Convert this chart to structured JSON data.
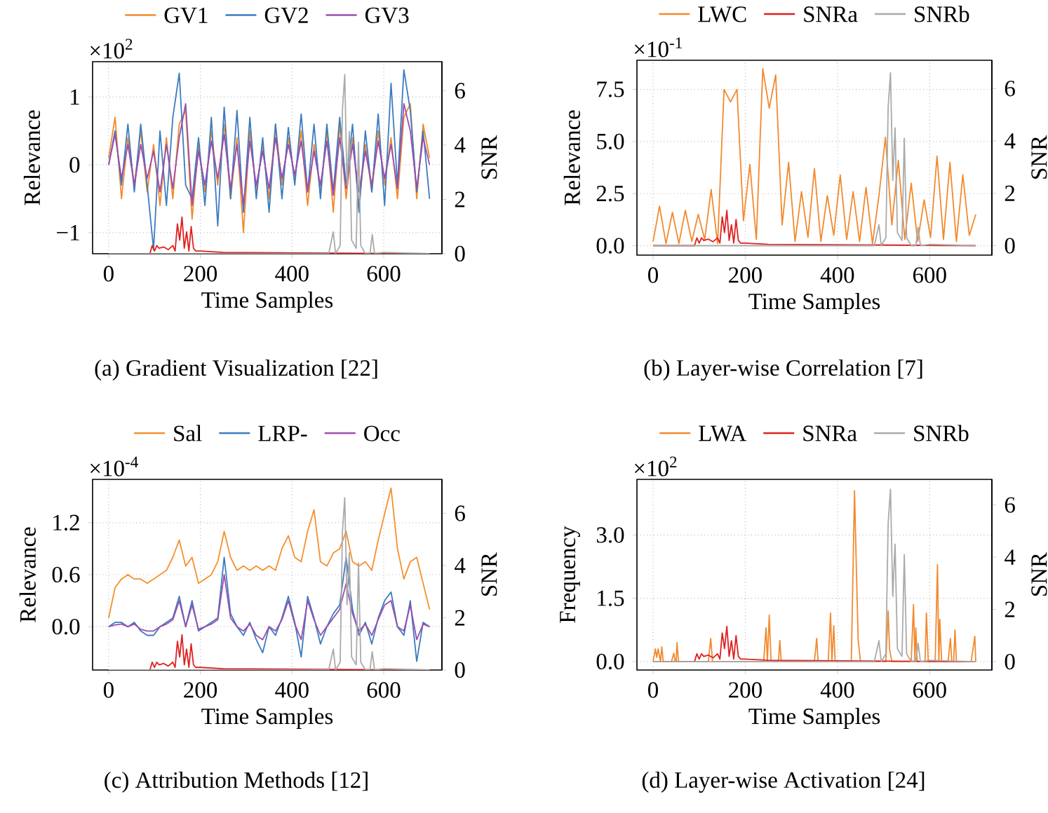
{
  "chart_data": [
    {
      "type": "line",
      "xlabel": "Time Samples",
      "ylabel": "Relevance",
      "y2label": "SNR",
      "annotations": [
        "×10$^{2}$",
        "(a) Gradient Visualization [22]"
      ],
      "x": [
        0,
        14,
        28,
        42,
        56,
        70,
        84,
        98,
        112,
        126,
        140,
        154,
        168,
        182,
        196,
        210,
        224,
        238,
        252,
        266,
        280,
        294,
        308,
        322,
        336,
        350,
        364,
        378,
        392,
        406,
        420,
        434,
        448,
        462,
        476,
        490,
        504,
        518,
        532,
        546,
        560,
        574,
        588,
        602,
        616,
        630,
        644,
        658,
        672,
        686,
        700
      ],
      "xlim": [
        -35,
        727
      ],
      "ylim": [
        -1.31,
        1.52
      ],
      "y2lim": [
        0,
        7.07
      ],
      "xticks": [
        0,
        200,
        400,
        600
      ],
      "yticks": [
        {
          "value": -1,
          "label": "−1"
        },
        0,
        1
      ],
      "y2ticks": [
        0,
        2,
        4,
        6
      ],
      "grid": true,
      "legend": "top",
      "series": [
        {
          "name": "GV1",
          "color": "#f28a2e",
          "values": [
            0.1,
            0.7,
            -0.5,
            0.4,
            -0.3,
            0.5,
            -0.4,
            0.3,
            -0.6,
            0.4,
            -0.5,
            0.6,
            0.8,
            -0.8,
            0.3,
            -0.4,
            0.5,
            -0.3,
            0.6,
            -0.5,
            0.4,
            -1.0,
            0.5,
            -0.4,
            0.3,
            -0.5,
            0.6,
            -0.3,
            0.4,
            -0.2,
            0.5,
            -0.6,
            0.3,
            -0.4,
            0.5,
            -0.7,
            0.6,
            -0.5,
            0.4,
            -0.6,
            0.3,
            -0.4,
            0.5,
            -0.3,
            0.4,
            -0.5,
            0.7,
            0.9,
            -0.5,
            0.6,
            0.1
          ]
        },
        {
          "name": "GV2",
          "color": "#3b7cc0",
          "values": [
            0.0,
            0.5,
            -0.3,
            0.6,
            -0.4,
            0.6,
            -0.3,
            -1.25,
            0.5,
            -0.6,
            0.7,
            1.35,
            -0.3,
            -0.5,
            0.4,
            -0.6,
            0.7,
            -0.9,
            0.85,
            -0.5,
            0.8,
            -0.7,
            0.7,
            -0.5,
            0.4,
            -0.7,
            0.6,
            -0.5,
            0.55,
            -0.3,
            0.75,
            -0.4,
            0.6,
            -0.5,
            0.6,
            -0.4,
            0.7,
            -0.3,
            0.6,
            -0.7,
            0.5,
            -0.4,
            0.75,
            -0.6,
            1.2,
            -0.3,
            1.4,
            0.8,
            -0.4,
            0.5,
            -0.5
          ]
        },
        {
          "name": "GV3",
          "color": "#9a4eae",
          "values": [
            0.0,
            0.45,
            -0.2,
            0.3,
            -0.3,
            0.3,
            -0.2,
            0.2,
            -0.4,
            0.3,
            -0.35,
            0.4,
            0.9,
            -0.6,
            0.2,
            -0.3,
            0.35,
            -0.2,
            0.45,
            -0.35,
            0.3,
            -0.6,
            0.35,
            -0.3,
            0.2,
            -0.35,
            0.4,
            -0.2,
            0.3,
            -0.15,
            0.35,
            -0.4,
            0.2,
            -0.3,
            0.35,
            -0.45,
            0.4,
            -0.35,
            0.3,
            -0.4,
            0.2,
            -0.3,
            0.35,
            -0.2,
            0.3,
            -0.35,
            0.9,
            0.5,
            -0.35,
            0.4,
            0.0
          ]
        },
        {
          "color": "#e02020",
          "axis": "y2",
          "x": [
            0,
            90,
            95,
            100,
            105,
            110,
            120,
            130,
            140,
            145,
            150,
            155,
            160,
            165,
            170,
            175,
            180,
            185,
            190,
            200,
            250,
            700
          ],
          "values": [
            0,
            0,
            0.3,
            0.1,
            0.3,
            0.2,
            0.25,
            0.15,
            0.3,
            0.1,
            1.1,
            0.5,
            1.35,
            0.2,
            0.8,
            0.1,
            1.0,
            0.2,
            0.1,
            0.1,
            0.05,
            0
          ]
        },
        {
          "color": "#aaaaaa",
          "axis": "y2",
          "x": [
            0,
            480,
            490,
            495,
            505,
            510,
            515,
            520,
            525,
            530,
            540,
            545,
            550,
            560,
            570,
            575,
            580,
            600,
            700
          ],
          "values": [
            0,
            0,
            0.8,
            0,
            0.3,
            5.3,
            6.6,
            2.5,
            4.5,
            0.5,
            0.2,
            4.1,
            0.3,
            0,
            0,
            0.7,
            0,
            0.05,
            0
          ]
        }
      ]
    },
    {
      "type": "line",
      "xlabel": "Time Samples",
      "ylabel": "Relevance",
      "y2label": "SNR",
      "annotations": [
        "×10$^{-1}$",
        "(b) Layer-wise Correlation [7]"
      ],
      "x": [
        0,
        14,
        28,
        42,
        56,
        70,
        84,
        98,
        112,
        126,
        140,
        154,
        168,
        182,
        196,
        210,
        224,
        238,
        252,
        266,
        280,
        294,
        308,
        322,
        336,
        350,
        364,
        378,
        392,
        406,
        420,
        434,
        448,
        462,
        476,
        490,
        504,
        518,
        532,
        546,
        560,
        574,
        588,
        602,
        616,
        630,
        644,
        658,
        672,
        686,
        700
      ],
      "xlim": [
        -35,
        735
      ],
      "ylim": [
        -0.45,
        8.9
      ],
      "y2lim": [
        -0.36,
        7.08
      ],
      "xticks": [
        0,
        200,
        400,
        600
      ],
      "yticks": [
        {
          "value": 0,
          "label": "0.0"
        },
        2.5,
        {
          "value": 5,
          "label": "5.0"
        },
        7.5
      ],
      "y2ticks": [
        0,
        2,
        4,
        6
      ],
      "grid": true,
      "legend": "top",
      "series": [
        {
          "name": "LWC",
          "color": "#f28a2e",
          "values": [
            0.2,
            1.9,
            0.1,
            1.6,
            0.1,
            1.7,
            0.2,
            1.5,
            0.3,
            2.7,
            0.1,
            7.5,
            6.9,
            7.5,
            1.2,
            3.9,
            0.3,
            8.5,
            6.6,
            8.2,
            1.0,
            4.0,
            0.2,
            2.6,
            0.4,
            3.7,
            0.2,
            2.4,
            0.5,
            3.4,
            0.3,
            2.6,
            0.2,
            2.8,
            0.1,
            2.4,
            5.2,
            1.0,
            4.1,
            0.3,
            3.0,
            0.2,
            2.2,
            0.4,
            4.3,
            0.3,
            4.0,
            0.2,
            3.4,
            0.5,
            1.5
          ]
        },
        {
          "name": "SNRa",
          "color": "#e02020",
          "axis": "y2",
          "x": [
            0,
            90,
            95,
            100,
            105,
            110,
            120,
            130,
            140,
            145,
            150,
            155,
            160,
            165,
            170,
            175,
            180,
            185,
            190,
            200,
            250,
            700
          ],
          "values": [
            0,
            0,
            0.3,
            0.1,
            0.3,
            0.2,
            0.25,
            0.15,
            0.3,
            0.1,
            1.1,
            0.5,
            1.35,
            0.2,
            0.8,
            0.1,
            1.0,
            0.2,
            0.1,
            0.1,
            0.05,
            0
          ]
        },
        {
          "name": "SNRb",
          "color": "#aaaaaa",
          "axis": "y2",
          "x": [
            0,
            480,
            490,
            495,
            505,
            510,
            515,
            520,
            525,
            530,
            540,
            545,
            550,
            560,
            570,
            575,
            580,
            600,
            700
          ],
          "values": [
            0,
            0,
            0.8,
            0,
            0.3,
            5.3,
            6.6,
            2.5,
            4.5,
            0.5,
            0.2,
            4.1,
            0.3,
            0,
            0,
            0.7,
            0,
            0.05,
            0
          ]
        }
      ]
    },
    {
      "type": "line",
      "xlabel": "Time Samples",
      "ylabel": "Relevance",
      "y2label": "SNR",
      "annotations": [
        "×10$^{-4}$",
        "(c) Attribution Methods [12]"
      ],
      "x": [
        0,
        14,
        28,
        42,
        56,
        70,
        84,
        98,
        112,
        126,
        140,
        154,
        168,
        182,
        196,
        210,
        224,
        238,
        252,
        266,
        280,
        294,
        308,
        322,
        336,
        350,
        364,
        378,
        392,
        406,
        420,
        434,
        448,
        462,
        476,
        490,
        504,
        518,
        532,
        546,
        560,
        574,
        588,
        602,
        616,
        630,
        644,
        658,
        672,
        686,
        700
      ],
      "xlim": [
        -35,
        727
      ],
      "ylim": [
        -0.5,
        1.7
      ],
      "y2lim": [
        0,
        7.3
      ],
      "xticks": [
        0,
        200,
        400,
        600
      ],
      "yticks": [
        {
          "value": 0,
          "label": "0.0"
        },
        0.6,
        1.2
      ],
      "y2ticks": [
        0,
        2,
        4,
        6
      ],
      "grid": true,
      "legend": "top",
      "series": [
        {
          "name": "Sal",
          "color": "#f5902e",
          "values": [
            0.1,
            0.45,
            0.55,
            0.6,
            0.55,
            0.55,
            0.5,
            0.55,
            0.6,
            0.65,
            0.8,
            1.0,
            0.7,
            0.8,
            0.5,
            0.55,
            0.6,
            0.75,
            1.1,
            0.8,
            0.65,
            0.7,
            0.65,
            0.7,
            0.65,
            0.7,
            0.65,
            0.9,
            1.05,
            0.8,
            0.75,
            1.1,
            1.35,
            0.75,
            0.7,
            0.85,
            0.9,
            1.1,
            0.75,
            0.7,
            0.75,
            0.65,
            1.0,
            1.3,
            1.6,
            0.9,
            0.55,
            0.75,
            0.8,
            0.5,
            0.2
          ]
        },
        {
          "name": "LRP-",
          "color": "#3b7cc0",
          "values": [
            0.0,
            0.05,
            0.05,
            0.0,
            0.05,
            -0.05,
            -0.1,
            -0.1,
            0.0,
            0.05,
            0.1,
            0.35,
            0.0,
            0.3,
            -0.05,
            0.0,
            0.05,
            0.1,
            0.8,
            0.15,
            0.0,
            -0.1,
            0.05,
            -0.15,
            -0.3,
            0.0,
            -0.1,
            0.1,
            0.35,
            0.05,
            -0.35,
            0.35,
            0.1,
            -0.2,
            0.0,
            0.15,
            0.25,
            0.8,
            0.2,
            -0.1,
            0.05,
            -0.2,
            0.1,
            0.3,
            0.4,
            0.0,
            -0.1,
            0.3,
            -0.4,
            0.05,
            0.0
          ]
        },
        {
          "name": "Occ",
          "color": "#9a4eae",
          "values": [
            0.0,
            0.02,
            0.03,
            0.0,
            0.03,
            -0.03,
            -0.05,
            -0.05,
            0.0,
            0.03,
            0.08,
            0.3,
            0.0,
            0.25,
            -0.03,
            0.0,
            0.03,
            0.08,
            0.6,
            0.1,
            0.0,
            -0.05,
            0.03,
            -0.1,
            -0.15,
            0.0,
            -0.05,
            0.08,
            0.3,
            0.03,
            -0.15,
            0.3,
            0.08,
            -0.1,
            0.0,
            0.1,
            0.2,
            0.5,
            0.15,
            -0.05,
            0.03,
            -0.1,
            0.08,
            0.25,
            0.3,
            0.0,
            -0.05,
            0.25,
            -0.15,
            0.03,
            0.0
          ]
        },
        {
          "color": "#e02020",
          "axis": "y2",
          "x": [
            0,
            90,
            95,
            100,
            105,
            110,
            120,
            130,
            140,
            145,
            150,
            155,
            160,
            165,
            170,
            175,
            180,
            185,
            190,
            200,
            250,
            700
          ],
          "values": [
            0,
            0,
            0.3,
            0.1,
            0.3,
            0.2,
            0.25,
            0.15,
            0.3,
            0.1,
            1.1,
            0.5,
            1.35,
            0.2,
            0.8,
            0.1,
            1.0,
            0.2,
            0.1,
            0.1,
            0.05,
            0
          ]
        },
        {
          "color": "#aaaaaa",
          "axis": "y2",
          "x": [
            0,
            480,
            490,
            495,
            505,
            510,
            515,
            520,
            525,
            530,
            540,
            545,
            550,
            560,
            570,
            575,
            580,
            600,
            700
          ],
          "values": [
            0,
            0,
            0.8,
            0,
            0.3,
            5.3,
            6.6,
            2.5,
            4.5,
            0.5,
            0.2,
            4.1,
            0.3,
            0,
            0,
            0.7,
            0,
            0.05,
            0
          ]
        }
      ]
    },
    {
      "type": "line",
      "xlabel": "Time Samples",
      "ylabel": "Frequency",
      "y2label": "SNR",
      "annotations": [
        "×10$^{2}$",
        "(d) Layer-wise Activation [24]"
      ],
      "xlim": [
        -35,
        735
      ],
      "ylim": [
        -0.2,
        4.32
      ],
      "y2lim": [
        -0.32,
        6.98
      ],
      "xticks": [
        0,
        200,
        400,
        600
      ],
      "yticks": [
        {
          "value": 0,
          "label": "0.0"
        },
        1.5,
        {
          "value": 3,
          "label": "3.0"
        }
      ],
      "y2ticks": [
        0,
        2,
        4,
        6
      ],
      "grid": true,
      "legend": "top",
      "series": [
        {
          "name": "LWA",
          "color": "#f28a2e",
          "x": [
            0,
            5,
            8,
            11,
            16,
            19,
            22,
            40,
            45,
            48,
            50,
            52,
            55,
            120,
            125,
            129,
            240,
            245,
            248,
            252,
            256,
            272,
            275,
            278,
            350,
            355,
            358,
            380,
            385,
            388,
            392,
            395,
            430,
            437,
            441,
            445,
            450,
            505,
            510,
            513,
            518,
            560,
            565,
            568,
            570,
            573,
            590,
            593,
            597,
            612,
            617,
            620,
            622,
            626,
            640,
            645,
            648,
            652,
            655,
            658,
            690,
            698,
            700
          ],
          "values": [
            0,
            0.3,
            0.1,
            0.3,
            0,
            0.35,
            0,
            0,
            0.2,
            0,
            0,
            0.45,
            0,
            0,
            0.55,
            0,
            0,
            0.8,
            0,
            1.1,
            0,
            0,
            0.5,
            0,
            0,
            0.55,
            0,
            0,
            1.15,
            0,
            0.85,
            0,
            0,
            4.05,
            2.2,
            0.5,
            0,
            0,
            1.2,
            0.3,
            0,
            0,
            1.35,
            0,
            0.8,
            0,
            0,
            1.15,
            0,
            0,
            2.3,
            0,
            1.0,
            0,
            0,
            0.55,
            0,
            0,
            0.75,
            0,
            0,
            0.6,
            0
          ]
        },
        {
          "name": "SNRa",
          "color": "#e02020",
          "axis": "y2",
          "x": [
            0,
            90,
            95,
            100,
            105,
            110,
            120,
            130,
            140,
            145,
            150,
            155,
            160,
            165,
            170,
            175,
            180,
            185,
            190,
            200,
            250,
            700
          ],
          "values": [
            0,
            0,
            0.3,
            0.1,
            0.3,
            0.2,
            0.25,
            0.15,
            0.3,
            0.1,
            1.1,
            0.5,
            1.35,
            0.2,
            0.8,
            0.1,
            1.0,
            0.2,
            0.1,
            0.1,
            0.05,
            0
          ]
        },
        {
          "name": "SNRb",
          "color": "#aaaaaa",
          "axis": "y2",
          "x": [
            0,
            480,
            490,
            495,
            505,
            510,
            515,
            520,
            525,
            530,
            540,
            545,
            550,
            560,
            570,
            575,
            580,
            600,
            700
          ],
          "values": [
            0,
            0,
            0.8,
            0,
            0.3,
            5.3,
            6.6,
            2.5,
            4.5,
            0.5,
            0.2,
            4.1,
            0.3,
            0,
            0,
            0.7,
            0,
            0.05,
            0
          ]
        }
      ]
    }
  ]
}
